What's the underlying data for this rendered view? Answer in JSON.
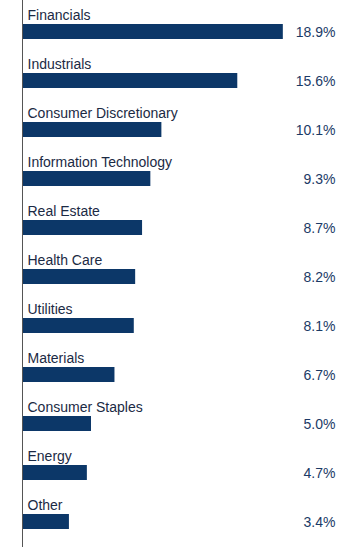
{
  "chart_data": {
    "type": "bar",
    "orientation": "horizontal",
    "categories": [
      "Financials",
      "Industrials",
      "Consumer Discretionary",
      "Information Technology",
      "Real Estate",
      "Health Care",
      "Utilities",
      "Materials",
      "Consumer Staples",
      "Energy",
      "Other"
    ],
    "values": [
      18.9,
      15.6,
      10.1,
      9.3,
      8.7,
      8.2,
      8.1,
      6.7,
      5.0,
      4.7,
      3.4
    ],
    "value_labels": [
      "18.9%",
      "15.6%",
      "10.1%",
      "9.3%",
      "8.7%",
      "8.2%",
      "8.1%",
      "6.7%",
      "5.0%",
      "4.7%",
      "3.4%"
    ],
    "color": "#0c3768",
    "xlim": [
      0,
      20
    ],
    "data_labels": true,
    "tick_labels": false,
    "grid": false
  }
}
